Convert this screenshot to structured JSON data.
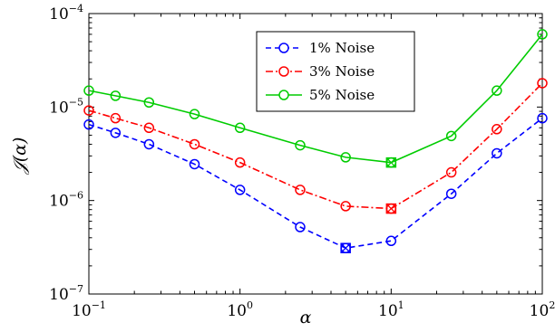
{
  "chart_data": {
    "type": "line",
    "xscale": "log",
    "yscale": "log",
    "xlim": [
      0.1,
      100
    ],
    "ylim": [
      1e-07,
      0.0001
    ],
    "xlabel": "α",
    "ylabel": "𝒥(α)",
    "x_ticks": [
      {
        "base": "10",
        "exp": "−1",
        "value": 0.1
      },
      {
        "base": "10",
        "exp": "0",
        "value": 1
      },
      {
        "base": "10",
        "exp": "1",
        "value": 10
      },
      {
        "base": "10",
        "exp": "2",
        "value": 100
      }
    ],
    "y_ticks": [
      {
        "base": "10",
        "exp": "−7",
        "value": 1e-07
      },
      {
        "base": "10",
        "exp": "−6",
        "value": 1e-06
      },
      {
        "base": "10",
        "exp": "−5",
        "value": 1e-05
      },
      {
        "base": "10",
        "exp": "−4",
        "value": 0.0001
      }
    ],
    "grid": false,
    "legend_position": "top-center",
    "x": [
      0.1,
      0.15,
      0.25,
      0.5,
      1,
      2.5,
      5,
      10,
      25,
      50,
      100
    ],
    "series": [
      {
        "name": "1% Noise",
        "color": "#0000ff",
        "line_style": "dashed",
        "marker": "circle",
        "values": [
          6.5e-06,
          5.3e-06,
          4e-06,
          2.45e-06,
          1.3e-06,
          5.2e-07,
          3.1e-07,
          3.7e-07,
          1.18e-06,
          3.2e-06,
          7.6e-06
        ],
        "minimum_index": 6
      },
      {
        "name": "3% Noise",
        "color": "#ff0000",
        "line_style": "dashdot",
        "marker": "circle",
        "values": [
          9.2e-06,
          7.6e-06,
          6e-06,
          4e-06,
          2.55e-06,
          1.3e-06,
          8.7e-07,
          8.2e-07,
          2e-06,
          5.8e-06,
          1.8e-05
        ],
        "minimum_index": 7
      },
      {
        "name": "5% Noise",
        "color": "#00cc00",
        "line_style": "solid",
        "marker": "circle",
        "values": [
          1.5e-05,
          1.32e-05,
          1.12e-05,
          8.4e-06,
          6e-06,
          3.9e-06,
          2.9e-06,
          2.55e-06,
          4.9e-06,
          1.5e-05,
          6e-05
        ],
        "minimum_index": 7
      }
    ]
  }
}
